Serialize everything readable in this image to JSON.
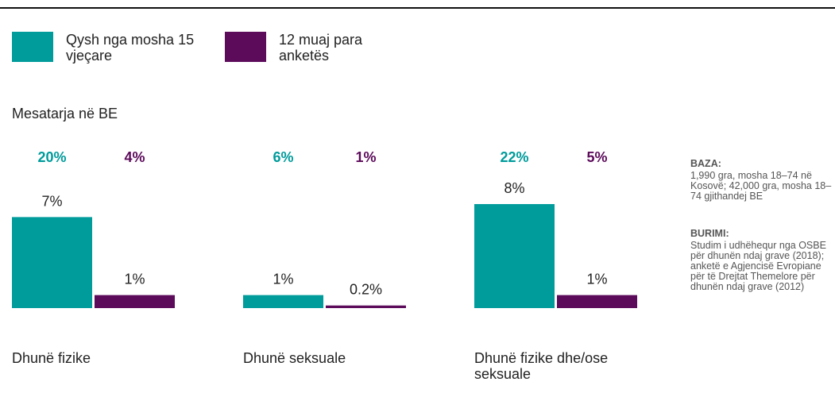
{
  "chart_data": {
    "type": "bar",
    "categories": [
      "Dhunë fizike",
      "Dhunë seksuale",
      "Dhunë fizike dhe/ose seksuale"
    ],
    "series": [
      {
        "name": "Qysh nga mosha 15 vjeçare",
        "color": "#009b9b",
        "values": [
          7,
          1,
          8
        ],
        "value_labels": [
          "7%",
          "1%",
          "8%"
        ]
      },
      {
        "name": "12 muaj para anketës",
        "color": "#5c0a5a",
        "values": [
          1,
          0.2,
          1
        ],
        "value_labels": [
          "1%",
          "0.2%",
          "1%"
        ]
      }
    ],
    "eu_average": {
      "label": "Mesatarja në BE",
      "series": [
        {
          "values": [
            20,
            6,
            22
          ],
          "value_labels": [
            "20%",
            "6%",
            "22%"
          ]
        },
        {
          "values": [
            4,
            1,
            5
          ],
          "value_labels": [
            "4%",
            "1%",
            "5%"
          ]
        }
      ]
    },
    "notes": [
      {
        "title": "BAZA:",
        "text": "1,990 gra, mosha 18–74 në Kosovë; 42,000 gra, mosha 18–74  gjithandej BE"
      },
      {
        "title": "BURIMI:",
        "text": "Studim i udhëhequr nga OSBE për dhunën ndaj grave (2018); anketë e Agjencisë Evropiane për të Drejtat Themelore për dhunën ndaj grave (2012)"
      }
    ]
  }
}
